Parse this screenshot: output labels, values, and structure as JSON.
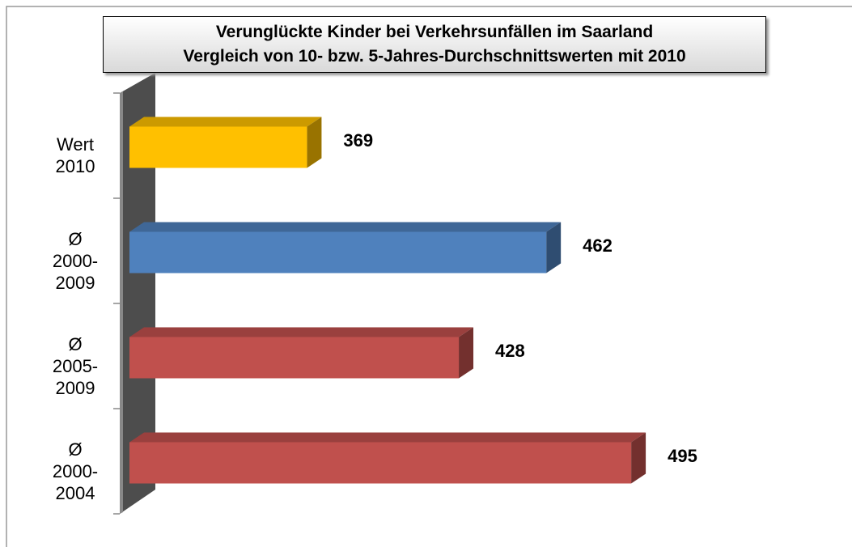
{
  "chart_data": {
    "type": "bar",
    "orientation": "horizontal",
    "title": "Verunglückte Kinder bei Verkehrsunfällen im Saarland",
    "subtitle": "Vergleich von 10- bzw. 5-Jahres-Durchschnittswerten mit 2010",
    "categories": [
      "Wert 2010",
      "Ø 2000-2009",
      "Ø 2005-2009",
      "Ø 2000-2004"
    ],
    "values": [
      369,
      462,
      428,
      495
    ],
    "colors": [
      "#ffc000",
      "#4f81bd",
      "#c0504d",
      "#c0504d"
    ],
    "xlim": [
      300,
      500
    ]
  }
}
